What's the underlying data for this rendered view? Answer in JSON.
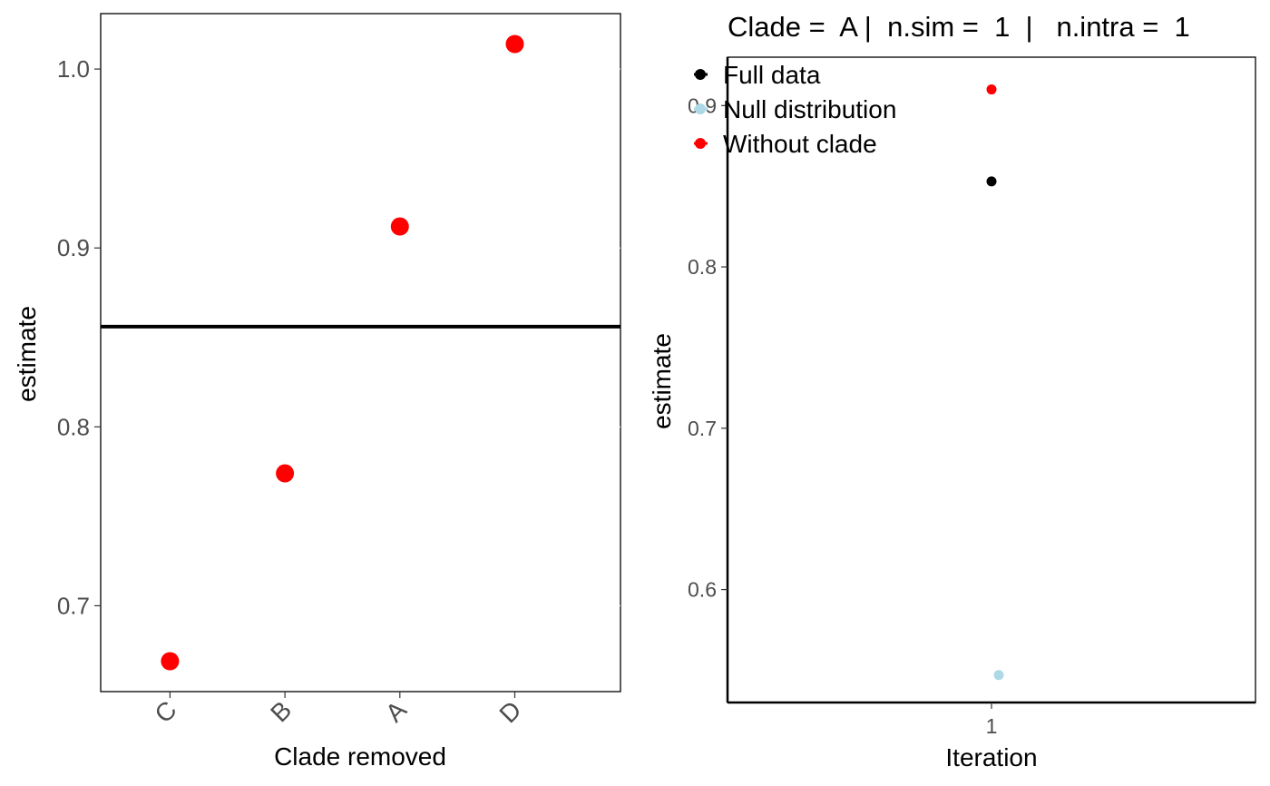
{
  "chart_data": [
    {
      "type": "scatter",
      "xlabel": "Clade removed",
      "ylabel": "estimate",
      "categories": [
        "C",
        "B",
        "A",
        "D"
      ],
      "series": [
        {
          "values": [
            0.669,
            0.774,
            0.912,
            1.014
          ],
          "color": "#ff0000"
        }
      ],
      "hline": {
        "y": 0.856,
        "color": "#000000"
      },
      "ylim": [
        0.652,
        1.031
      ],
      "yticks": [
        0.7,
        0.8,
        0.9,
        1.0
      ],
      "yticklabels": [
        "0.7",
        "0.8",
        "0.9",
        "1.0"
      ],
      "grid": false
    },
    {
      "type": "scatter",
      "title": "Clade =  A |  n.sim =  1  |   n.intra =  1",
      "xlabel": "Iteration",
      "ylabel": "estimate",
      "x": [
        1
      ],
      "xticklabels": [
        "1"
      ],
      "series": [
        {
          "name": "Full data",
          "x": [
            1
          ],
          "values": [
            0.853
          ],
          "color": "#000000"
        },
        {
          "name": "Null distribution",
          "x": [
            1
          ],
          "values": [
            0.547
          ],
          "color": "#add8e6"
        },
        {
          "name": "Without clade",
          "x": [
            1
          ],
          "values": [
            0.91
          ],
          "color": "#ff0000"
        }
      ],
      "ylim": [
        0.53,
        0.93
      ],
      "yticks": [
        0.6,
        0.7,
        0.8,
        0.9
      ],
      "yticklabels": [
        "0.6",
        "0.7",
        "0.8",
        "0.9"
      ],
      "legend_position": "top-left, overlapping plot",
      "grid": false
    }
  ]
}
